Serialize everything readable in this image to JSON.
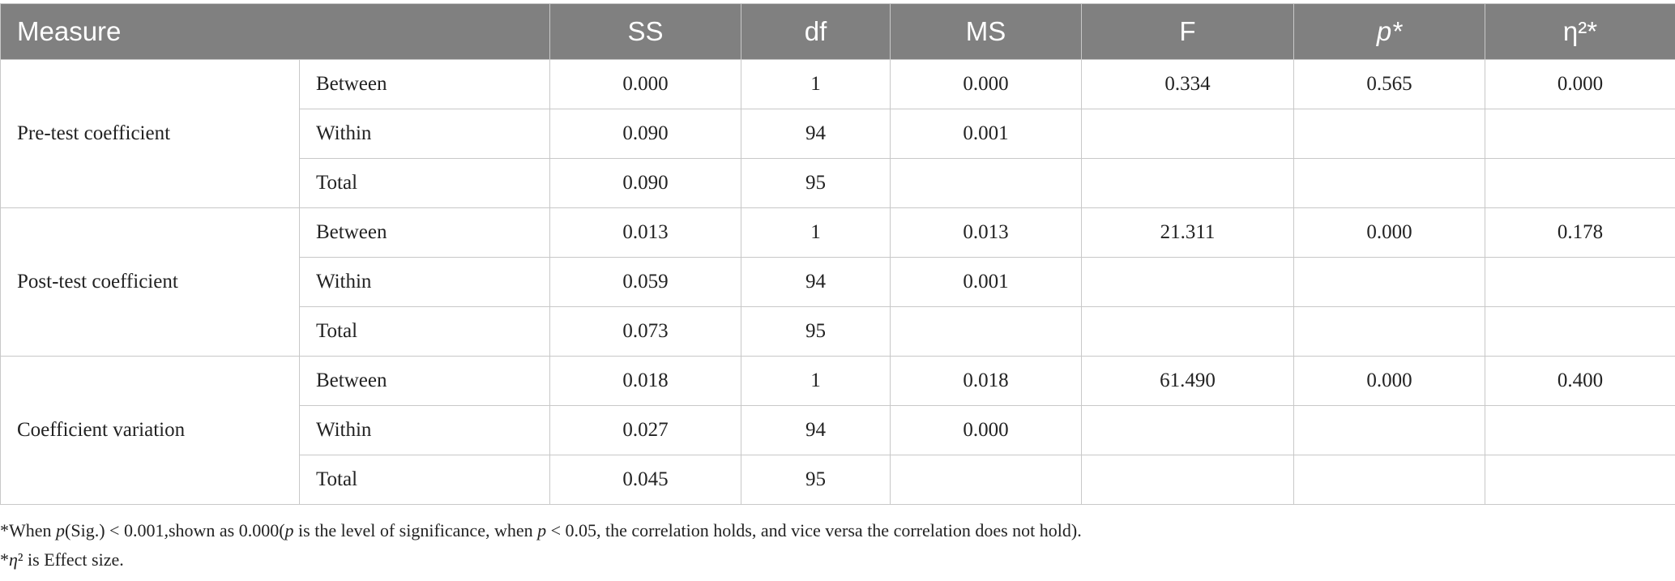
{
  "table": {
    "headers": {
      "measure": "Measure",
      "ss": "SS",
      "df": "df",
      "ms": "MS",
      "f": "F",
      "p": "p*",
      "eta": "η²*"
    },
    "groups": [
      {
        "measure": "Pre-test coefficient",
        "rows": [
          {
            "source": "Between",
            "ss": "0.000",
            "df": "1",
            "ms": "0.000",
            "f": "0.334",
            "p": "0.565",
            "eta": "0.000"
          },
          {
            "source": "Within",
            "ss": "0.090",
            "df": "94",
            "ms": "0.001",
            "f": "",
            "p": "",
            "eta": ""
          },
          {
            "source": "Total",
            "ss": "0.090",
            "df": "95",
            "ms": "",
            "f": "",
            "p": "",
            "eta": ""
          }
        ]
      },
      {
        "measure": "Post-test coefficient",
        "rows": [
          {
            "source": "Between",
            "ss": "0.013",
            "df": "1",
            "ms": "0.013",
            "f": "21.311",
            "p": "0.000",
            "eta": "0.178"
          },
          {
            "source": "Within",
            "ss": "0.059",
            "df": "94",
            "ms": "0.001",
            "f": "",
            "p": "",
            "eta": ""
          },
          {
            "source": "Total",
            "ss": "0.073",
            "df": "95",
            "ms": "",
            "f": "",
            "p": "",
            "eta": ""
          }
        ]
      },
      {
        "measure": "Coefficient variation",
        "rows": [
          {
            "source": "Between",
            "ss": "0.018",
            "df": "1",
            "ms": "0.018",
            "f": "61.490",
            "p": "0.000",
            "eta": "0.400"
          },
          {
            "source": "Within",
            "ss": "0.027",
            "df": "94",
            "ms": "0.000",
            "f": "",
            "p": "",
            "eta": ""
          },
          {
            "source": "Total",
            "ss": "0.045",
            "df": "95",
            "ms": "",
            "f": "",
            "p": "",
            "eta": ""
          }
        ]
      }
    ]
  },
  "notes": {
    "note1": "*When p(Sig.) < 0.001,shown as 0.000(p is the level of significance, when p < 0.05, the correlation holds, and vice versa the correlation does not hold).",
    "note2": "*η² is Effect size."
  },
  "colors": {
    "header_bg": "#808080",
    "header_text": "#ffffff",
    "border": "#c8c8c8"
  }
}
